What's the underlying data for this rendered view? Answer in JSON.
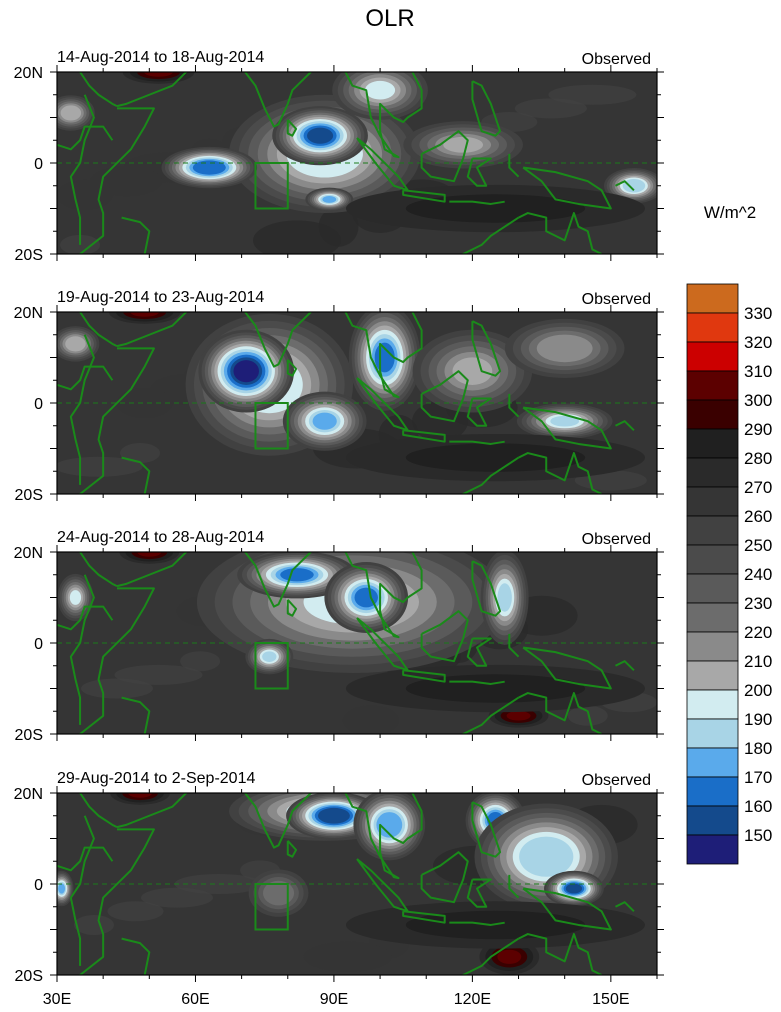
{
  "chart_data": {
    "type": "heatmap",
    "title": "OLR",
    "units_label": "W/m^2",
    "x_ticks": [
      {
        "lon": 30,
        "label": "30E"
      },
      {
        "lon": 60,
        "label": "60E"
      },
      {
        "lon": 90,
        "label": "90E"
      },
      {
        "lon": 120,
        "label": "120E"
      },
      {
        "lon": 150,
        "label": "150E"
      }
    ],
    "y_ticks": [
      {
        "lat": 20,
        "label": "20N"
      },
      {
        "lat": 0,
        "label": "0"
      },
      {
        "lat": -20,
        "label": "20S"
      }
    ],
    "lon_range": [
      30,
      160
    ],
    "lat_range": [
      -20,
      20
    ],
    "colorbar": {
      "levels": [
        150,
        160,
        170,
        180,
        190,
        200,
        210,
        220,
        230,
        240,
        250,
        260,
        270,
        280,
        290,
        300,
        310,
        320,
        330
      ],
      "colors": [
        "#1e1e78",
        "#144a8c",
        "#1a6ec8",
        "#5aaaeb",
        "#a8d4e6",
        "#d2ecf0",
        "#a8a8a8",
        "#8a8a8a",
        "#6c6c6c",
        "#5a5a5a",
        "#4b4b4b",
        "#414141",
        "#353535",
        "#2a2a2a",
        "#202020",
        "#3a0000",
        "#5c0000",
        "#cc0000",
        "#e0380f",
        "#cc6a1e"
      ]
    },
    "panels": [
      {
        "subtitle": "14-Aug-2014 to 18-Aug-2014",
        "label": "Observed",
        "background": 265,
        "features": [
          {
            "lon": 52,
            "lat": 20,
            "rlon": 6,
            "rlat": 2,
            "olr": 305
          },
          {
            "lon": 33,
            "lat": 11,
            "rlon": 4,
            "rlat": 3,
            "olr": 200
          },
          {
            "lon": 88,
            "lat": 2,
            "rlon": 16,
            "rlat": 10,
            "olr": 190
          },
          {
            "lon": 63,
            "lat": -1,
            "rlon": 8,
            "rlat": 3.5,
            "olr": 160
          },
          {
            "lon": 87,
            "lat": 6,
            "rlon": 8,
            "rlat": 5,
            "olr": 152
          },
          {
            "lon": 89,
            "lat": -8,
            "rlon": 4,
            "rlat": 2,
            "olr": 175
          },
          {
            "lon": 100,
            "lat": 16,
            "rlon": 8,
            "rlat": 5,
            "olr": 195
          },
          {
            "lon": 118,
            "lat": 4,
            "rlon": 10,
            "rlat": 4,
            "olr": 205
          },
          {
            "lon": 155,
            "lat": -5,
            "rlon": 5,
            "rlat": 3,
            "olr": 180
          },
          {
            "lon": 125,
            "lat": -10,
            "rlon": 25,
            "rlat": 4,
            "olr": 285
          }
        ]
      },
      {
        "subtitle": "19-Aug-2014 to 23-Aug-2014",
        "label": "Observed",
        "background": 265,
        "features": [
          {
            "lon": 49,
            "lat": 20,
            "rlon": 6,
            "rlat": 2,
            "olr": 300
          },
          {
            "lon": 34,
            "lat": 13,
            "rlon": 4,
            "rlat": 3,
            "olr": 200
          },
          {
            "lon": 76,
            "lat": 4,
            "rlon": 14,
            "rlat": 12,
            "olr": 190
          },
          {
            "lon": 71,
            "lat": 7,
            "rlon": 8,
            "rlat": 7,
            "olr": 148
          },
          {
            "lon": 88,
            "lat": -4,
            "rlon": 7,
            "rlat": 5,
            "olr": 175
          },
          {
            "lon": 101,
            "lat": 10,
            "rlon": 6,
            "rlat": 9,
            "olr": 165
          },
          {
            "lon": 120,
            "lat": 7,
            "rlon": 10,
            "rlat": 7,
            "olr": 205
          },
          {
            "lon": 140,
            "lat": -4,
            "rlon": 8,
            "rlat": 3,
            "olr": 185
          },
          {
            "lon": 140,
            "lat": 12,
            "rlon": 10,
            "rlat": 5,
            "olr": 210
          },
          {
            "lon": 125,
            "lat": -12,
            "rlon": 25,
            "rlat": 4,
            "olr": 285
          }
        ]
      },
      {
        "subtitle": "24-Aug-2014 to 28-Aug-2014",
        "label": "Observed",
        "background": 262,
        "features": [
          {
            "lon": 50,
            "lat": 20,
            "rlon": 5,
            "rlat": 2,
            "olr": 300
          },
          {
            "lon": 34,
            "lat": 10,
            "rlon": 3,
            "rlat": 4,
            "olr": 195
          },
          {
            "lon": 94,
            "lat": 9,
            "rlon": 26,
            "rlat": 12,
            "olr": 190
          },
          {
            "lon": 82,
            "lat": 15,
            "rlon": 10,
            "rlat": 4,
            "olr": 162
          },
          {
            "lon": 97,
            "lat": 10,
            "rlon": 7,
            "rlat": 6,
            "olr": 160
          },
          {
            "lon": 76,
            "lat": -3,
            "rlon": 4,
            "rlat": 3,
            "olr": 185
          },
          {
            "lon": 127,
            "lat": 10,
            "rlon": 4,
            "rlat": 8,
            "olr": 185
          },
          {
            "lon": 130,
            "lat": -16,
            "rlon": 5,
            "rlat": 2,
            "olr": 300
          },
          {
            "lon": 125,
            "lat": -10,
            "rlon": 25,
            "rlat": 4,
            "olr": 285
          }
        ]
      },
      {
        "subtitle": "29-Aug-2014 to 2-Sep-2014",
        "label": "Observed",
        "background": 265,
        "features": [
          {
            "lon": 48,
            "lat": 20,
            "rlon": 5,
            "rlat": 2,
            "olr": 300
          },
          {
            "lon": 31,
            "lat": -1,
            "rlon": 2,
            "rlat": 3,
            "olr": 175
          },
          {
            "lon": 88,
            "lat": 16,
            "rlon": 16,
            "rlat": 5,
            "olr": 185
          },
          {
            "lon": 90,
            "lat": 15,
            "rlon": 8,
            "rlat": 4,
            "olr": 150
          },
          {
            "lon": 102,
            "lat": 13,
            "rlon": 6,
            "rlat": 6,
            "olr": 170
          },
          {
            "lon": 125,
            "lat": 14,
            "rlon": 5,
            "rlat": 5,
            "olr": 165
          },
          {
            "lon": 136,
            "lat": 6,
            "rlon": 12,
            "rlat": 9,
            "olr": 180
          },
          {
            "lon": 142,
            "lat": -1,
            "rlon": 5,
            "rlat": 3,
            "olr": 155
          },
          {
            "lon": 78,
            "lat": -2,
            "rlon": 5,
            "rlat": 4,
            "olr": 220
          },
          {
            "lon": 128,
            "lat": -16,
            "rlon": 5,
            "rlat": 3,
            "olr": 305
          },
          {
            "lon": 125,
            "lat": -9,
            "rlon": 25,
            "rlat": 4,
            "olr": 285
          }
        ]
      }
    ]
  }
}
